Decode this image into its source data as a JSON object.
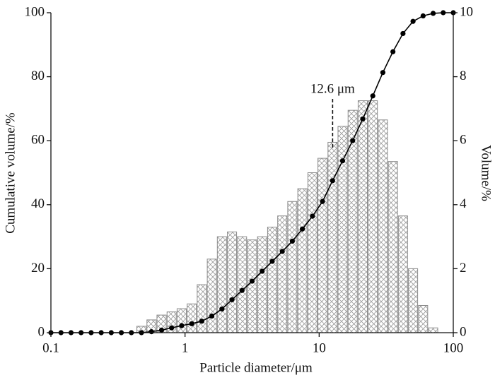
{
  "chart_data": {
    "type": "combo",
    "xlabel": "Particle diameter/μm",
    "ylabel": "Cumulative volume/%",
    "y2label": "Volume/%",
    "xscale": "log",
    "xlim": [
      0.1,
      100
    ],
    "xticks": [
      0.1,
      1,
      10,
      100
    ],
    "ylim": [
      0,
      100
    ],
    "yticks": [
      0,
      20,
      40,
      60,
      80,
      100
    ],
    "y2lim": [
      0,
      10
    ],
    "y2ticks": [
      0,
      2,
      4,
      6,
      8,
      10
    ],
    "histogram": {
      "axis": "y2",
      "color": "#8c8c8c",
      "bins": [
        0.434,
        0.516,
        0.613,
        0.729,
        0.866,
        1.029,
        1.223,
        1.454,
        1.728,
        2.054,
        2.441,
        2.9,
        3.447,
        4.097,
        4.87,
        5.788,
        6.879,
        8.175,
        9.716,
        11.55,
        13.72,
        16.31,
        19.38,
        23.04,
        27.38,
        32.54,
        38.67,
        45.96,
        54.63,
        64.92,
        77.16
      ],
      "values": [
        0.2,
        0.4,
        0.55,
        0.65,
        0.75,
        0.9,
        1.5,
        2.3,
        3.0,
        3.15,
        3.0,
        2.9,
        3.0,
        3.3,
        3.65,
        4.1,
        4.5,
        5.0,
        5.45,
        5.95,
        6.45,
        6.95,
        7.25,
        7.25,
        6.65,
        5.35,
        3.65,
        2.0,
        0.85,
        0.15
      ]
    },
    "line": {
      "color": "#000000",
      "x": [
        0.1,
        0.1189,
        0.1413,
        0.1679,
        0.1995,
        0.2371,
        0.2818,
        0.335,
        0.3981,
        0.4732,
        0.5623,
        0.6683,
        0.7943,
        0.9441,
        1.122,
        1.334,
        1.585,
        1.884,
        2.239,
        2.661,
        3.162,
        3.758,
        4.467,
        5.309,
        6.31,
        7.499,
        8.913,
        10.59,
        12.59,
        14.96,
        17.78,
        21.13,
        25.12,
        29.85,
        35.48,
        42.17,
        50.12,
        59.57,
        70.79,
        84.14,
        100
      ],
      "values": [
        0,
        0,
        0,
        0,
        0,
        0,
        0,
        0,
        0,
        0,
        0.3,
        0.8,
        1.5,
        2.2,
        2.8,
        3.6,
        5.2,
        7.4,
        10.3,
        13.2,
        16.1,
        19.2,
        22.3,
        25.4,
        28.6,
        32.4,
        36.4,
        41.0,
        47.5,
        53.7,
        60.0,
        66.8,
        74.0,
        81.3,
        87.8,
        93.5,
        97.3,
        99.0,
        99.8,
        100,
        100
      ]
    },
    "annotation": {
      "text": "12.6 μm",
      "x": 12.6
    }
  }
}
